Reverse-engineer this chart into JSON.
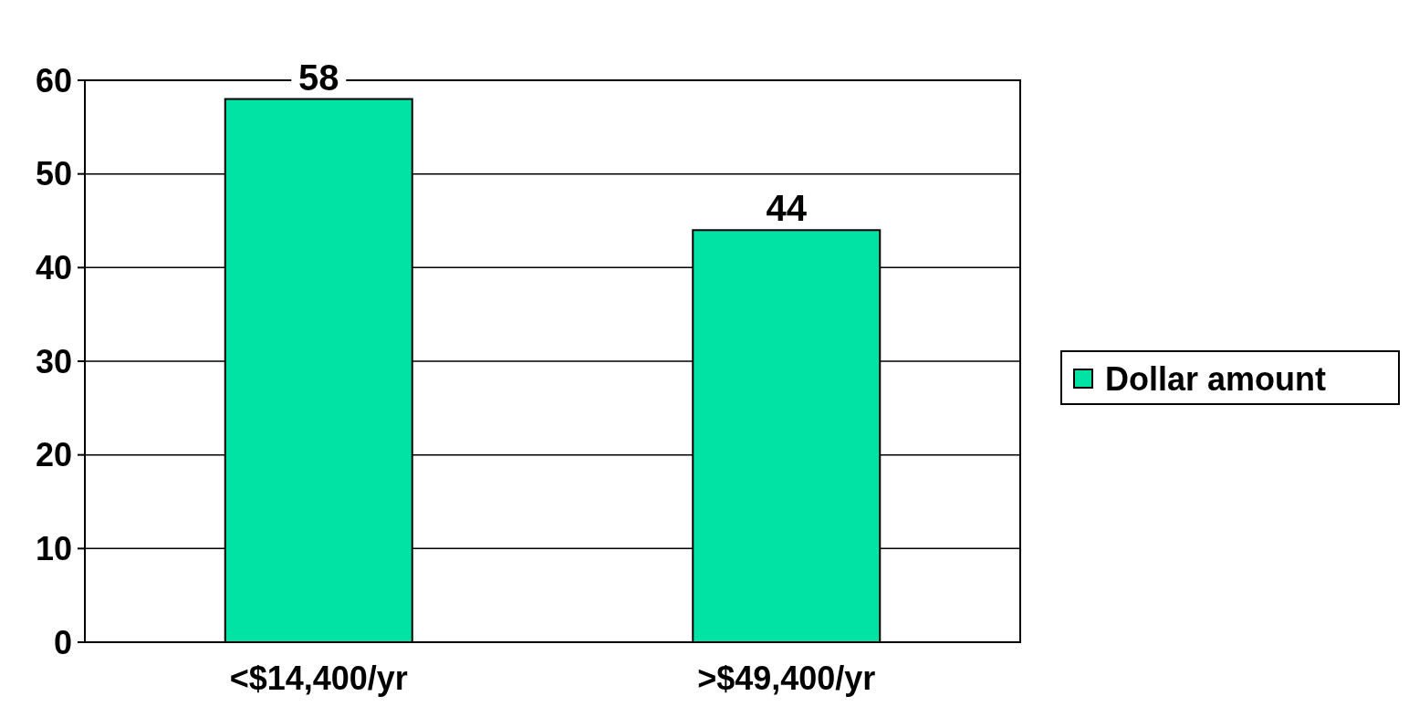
{
  "chart_data": {
    "type": "bar",
    "categories": [
      "<$14,400/yr",
      ">$49,400/yr"
    ],
    "series": [
      {
        "name": "Dollar amount",
        "color": "#00e3a5",
        "values": [
          58,
          44
        ]
      }
    ],
    "ylim": [
      0,
      60
    ],
    "yticks": [
      0,
      10,
      20,
      30,
      40,
      50,
      60
    ],
    "grid": "y",
    "legend": "right",
    "data_labels": true
  }
}
